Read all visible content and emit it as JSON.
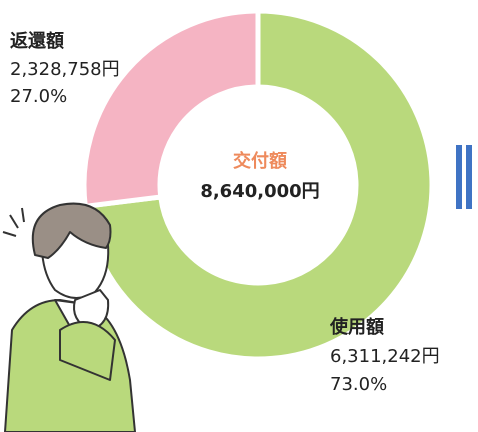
{
  "chart_data": {
    "type": "donut",
    "center_label": "交付額",
    "total": {
      "value": 8640000,
      "label": "8,640,000円"
    },
    "categories": [
      "使用額",
      "返還額"
    ],
    "values": [
      6311242,
      2328758
    ],
    "value_labels": [
      "6,311,242円",
      "2,328,758円"
    ],
    "percents": [
      73.0,
      27.0
    ],
    "percent_labels": [
      "73.0%",
      "27.0%"
    ],
    "colors": [
      "#b9d97c",
      "#f5b4c3"
    ]
  }
}
